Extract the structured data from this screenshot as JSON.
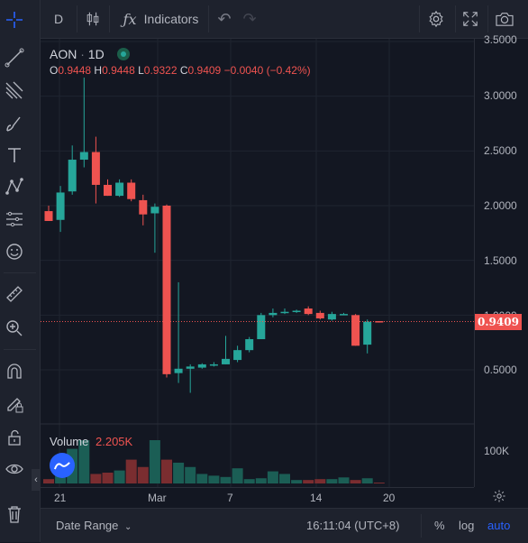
{
  "toolbar": {
    "interval": "D",
    "indicators_label": "Indicators"
  },
  "legend": {
    "symbol": "AON",
    "separator": "·",
    "interval": "1D",
    "o_label": "O",
    "o_val": "0.9448",
    "h_label": "H",
    "h_val": "0.9448",
    "l_label": "L",
    "l_val": "0.9322",
    "c_label": "C",
    "c_val": "0.9409",
    "change": "−0.0040 (−0.42%)"
  },
  "volume": {
    "label": "Volume",
    "value": "2.205K",
    "scale_tick": "100K"
  },
  "price_scale": {
    "ticks": [
      "3.5000",
      "3.0000",
      "2.5000",
      "2.0000",
      "1.5000",
      "1.0000",
      "0.5000"
    ],
    "last_price": "0.9409"
  },
  "time_axis": {
    "ticks": [
      "21",
      "Mar",
      "7",
      "14",
      "20"
    ]
  },
  "bottom_bar": {
    "date_range": "Date Range",
    "clock": "16:11:04 (UTC+8)",
    "percent": "%",
    "log": "log",
    "auto": "auto"
  },
  "colors": {
    "up": "#26a69a",
    "down": "#ef5350",
    "accent": "#2962ff",
    "background": "#131722"
  },
  "chart_data": {
    "type": "candlestick",
    "ylim": [
      0.2,
      3.5
    ],
    "candles": [
      {
        "o": 1.95,
        "h": 2.0,
        "l": 1.86,
        "c": 1.86
      },
      {
        "o": 1.87,
        "h": 2.18,
        "l": 1.76,
        "c": 2.12
      },
      {
        "o": 2.13,
        "h": 2.55,
        "l": 2.1,
        "c": 2.42
      },
      {
        "o": 2.42,
        "h": 3.17,
        "l": 2.35,
        "c": 2.49
      },
      {
        "o": 2.49,
        "h": 2.63,
        "l": 2.02,
        "c": 2.19
      },
      {
        "o": 2.19,
        "h": 2.24,
        "l": 2.09,
        "c": 2.09
      },
      {
        "o": 2.09,
        "h": 2.24,
        "l": 2.08,
        "c": 2.21
      },
      {
        "o": 2.21,
        "h": 2.24,
        "l": 2.04,
        "c": 2.06
      },
      {
        "o": 2.05,
        "h": 2.1,
        "l": 1.82,
        "c": 1.92
      },
      {
        "o": 1.93,
        "h": 2.02,
        "l": 1.57,
        "c": 1.99
      },
      {
        "o": 2.0,
        "h": 2.01,
        "l": 0.43,
        "c": 0.46
      },
      {
        "o": 0.47,
        "h": 1.3,
        "l": 0.38,
        "c": 0.51
      },
      {
        "o": 0.51,
        "h": 0.55,
        "l": 0.29,
        "c": 0.53
      },
      {
        "o": 0.52,
        "h": 0.56,
        "l": 0.51,
        "c": 0.55
      },
      {
        "o": 0.54,
        "h": 0.57,
        "l": 0.53,
        "c": 0.55
      },
      {
        "o": 0.55,
        "h": 0.81,
        "l": 0.55,
        "c": 0.6
      },
      {
        "o": 0.59,
        "h": 0.72,
        "l": 0.57,
        "c": 0.68
      },
      {
        "o": 0.68,
        "h": 0.8,
        "l": 0.66,
        "c": 0.78
      },
      {
        "o": 0.78,
        "h": 1.02,
        "l": 0.78,
        "c": 1.0
      },
      {
        "o": 1.0,
        "h": 1.06,
        "l": 0.98,
        "c": 1.02
      },
      {
        "o": 1.02,
        "h": 1.06,
        "l": 1.01,
        "c": 1.03
      },
      {
        "o": 1.03,
        "h": 1.05,
        "l": 1.02,
        "c": 1.04
      },
      {
        "o": 1.06,
        "h": 1.08,
        "l": 1.0,
        "c": 1.01
      },
      {
        "o": 1.02,
        "h": 1.04,
        "l": 0.96,
        "c": 0.97
      },
      {
        "o": 0.96,
        "h": 1.03,
        "l": 0.95,
        "c": 1.01
      },
      {
        "o": 1.01,
        "h": 1.02,
        "l": 1.0,
        "c": 1.01
      },
      {
        "o": 1.0,
        "h": 1.01,
        "l": 0.72,
        "c": 0.72
      },
      {
        "o": 0.73,
        "h": 0.96,
        "l": 0.65,
        "c": 0.94
      },
      {
        "o": 0.9448,
        "h": 0.9448,
        "l": 0.9322,
        "c": 0.9409
      }
    ],
    "volumes": [
      10,
      60,
      80,
      100,
      22,
      25,
      30,
      55,
      38,
      100,
      55,
      48,
      38,
      22,
      18,
      15,
      35,
      10,
      12,
      28,
      22,
      8,
      8,
      10,
      10,
      14,
      8,
      12,
      2
    ],
    "volume_max": 100
  }
}
